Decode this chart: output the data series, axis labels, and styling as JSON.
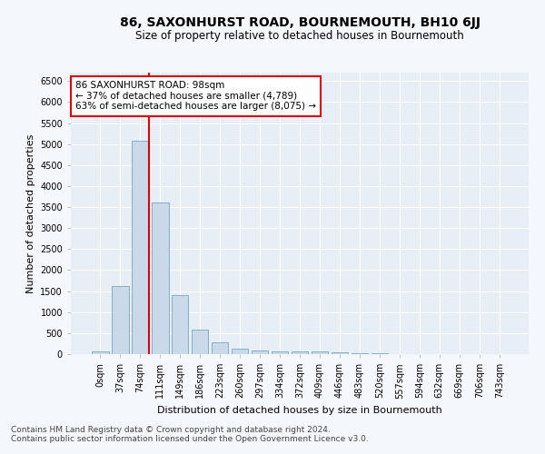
{
  "title": "86, SAXONHURST ROAD, BOURNEMOUTH, BH10 6JJ",
  "subtitle": "Size of property relative to detached houses in Bournemouth",
  "xlabel": "Distribution of detached houses by size in Bournemouth",
  "ylabel": "Number of detached properties",
  "footer_line1": "Contains HM Land Registry data © Crown copyright and database right 2024.",
  "footer_line2": "Contains public sector information licensed under the Open Government Licence v3.0.",
  "annotation_title": "86 SAXONHURST ROAD: 98sqm",
  "annotation_line1": "← 37% of detached houses are smaller (4,789)",
  "annotation_line2": "63% of semi-detached houses are larger (8,075) →",
  "bar_labels": [
    "0sqm",
    "37sqm",
    "74sqm",
    "111sqm",
    "149sqm",
    "186sqm",
    "223sqm",
    "260sqm",
    "297sqm",
    "334sqm",
    "372sqm",
    "409sqm",
    "446sqm",
    "483sqm",
    "520sqm",
    "557sqm",
    "594sqm",
    "632sqm",
    "669sqm",
    "706sqm",
    "743sqm"
  ],
  "bar_values": [
    75,
    1625,
    5075,
    3600,
    1400,
    575,
    290,
    140,
    90,
    75,
    55,
    55,
    45,
    20,
    15,
    10,
    8,
    5,
    3,
    2,
    1
  ],
  "bar_color": "#c9d9ea",
  "bar_edge_color": "#6699bb",
  "property_line_color": "#dd0000",
  "ylim": [
    0,
    6700
  ],
  "yticks": [
    0,
    500,
    1000,
    1500,
    2000,
    2500,
    3000,
    3500,
    4000,
    4500,
    5000,
    5500,
    6000,
    6500
  ],
  "bg_color": "#f4f7fb",
  "plot_bg_color": "#e8eef5",
  "title_fontsize": 10,
  "subtitle_fontsize": 8.5,
  "annotation_fontsize": 7.5,
  "tick_fontsize": 7,
  "ylabel_fontsize": 8,
  "xlabel_fontsize": 8,
  "footer_fontsize": 6.5
}
